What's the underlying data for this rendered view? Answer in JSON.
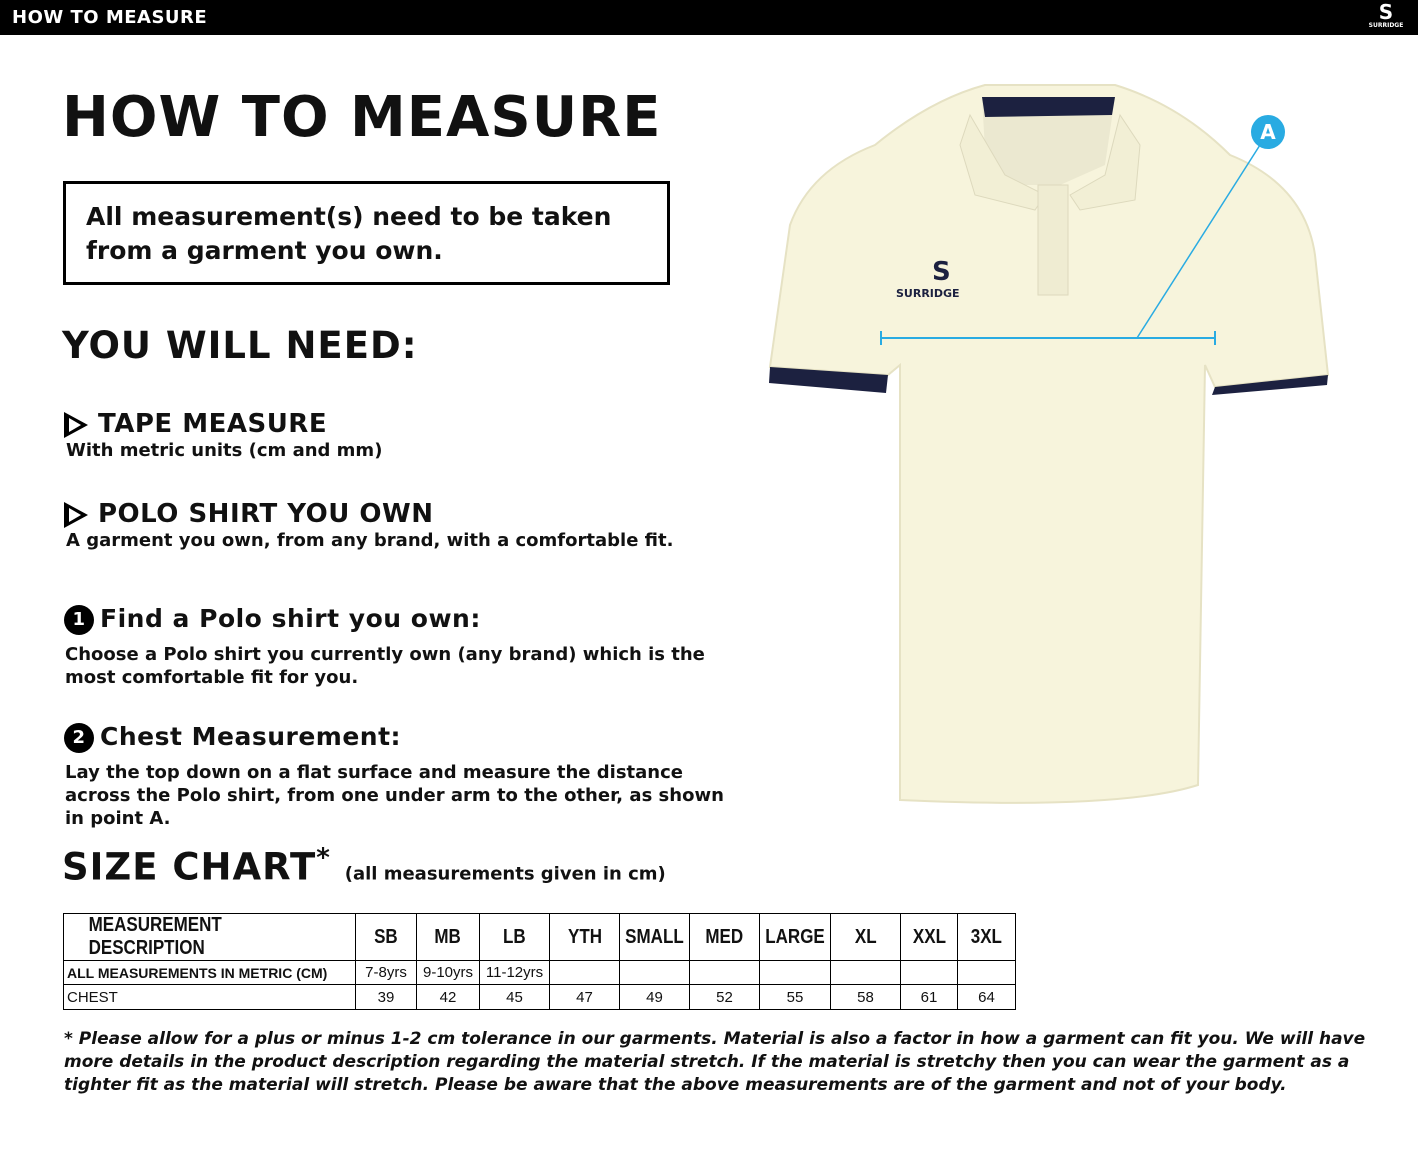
{
  "header": {
    "title": "HOW TO MEASURE",
    "brand": "SURRIDGE"
  },
  "main": {
    "title": "HOW TO MEASURE",
    "note": "All measurement(s) need to be taken from a garment you own.",
    "need_title": "YOU WILL NEED:",
    "needs": [
      {
        "title": "TAPE MEASURE",
        "desc": "With metric units (cm and mm)"
      },
      {
        "title": "POLO SHIRT YOU OWN",
        "desc": "A garment you own, from any brand, with a comfortable fit."
      }
    ],
    "steps": [
      {
        "number": "1",
        "title": "Find a Polo shirt you own:",
        "desc": "Choose a Polo shirt you currently own (any brand) which is the most comfortable fit for you."
      },
      {
        "number": "2",
        "title": "Chest Measurement:",
        "desc": "Lay the top down on a flat surface and measure the distance across the Polo shirt, from one under arm to the other, as shown in point A."
      }
    ],
    "diagram": {
      "point_label": "A",
      "shirt_brand": "SURRIDGE",
      "accent": "#29abe2",
      "shirt_color": "#f7f4dc",
      "trim_color": "#1c2140"
    }
  },
  "size_chart": {
    "title": "SIZE CHART",
    "asterisk": "*",
    "subtitle": "(all measurements given in cm)",
    "headers": [
      "MEASUREMENT DESCRIPTION",
      "SB",
      "MB",
      "LB",
      "YTH",
      "SMALL",
      "MED",
      "LARGE",
      "XL",
      "XXL",
      "3XL"
    ],
    "rows": [
      [
        "ALL MEASUREMENTS IN METRIC (CM)",
        "7-8yrs",
        "9-10yrs",
        "11-12yrs",
        "",
        "",
        "",
        "",
        "",
        "",
        ""
      ],
      [
        "CHEST",
        "39",
        "42",
        "45",
        "47",
        "49",
        "52",
        "55",
        "58",
        "61",
        "64"
      ]
    ]
  },
  "footnote": "* Please allow for a plus or minus 1-2 cm tolerance in our garments. Material is also a factor in how a garment can fit you. We will have more details in the product description regarding the material stretch.  If the material is stretchy then you can wear the garment as a tighter fit as the material will stretch.  Please be aware that the above measurements are of the garment and not of your body."
}
